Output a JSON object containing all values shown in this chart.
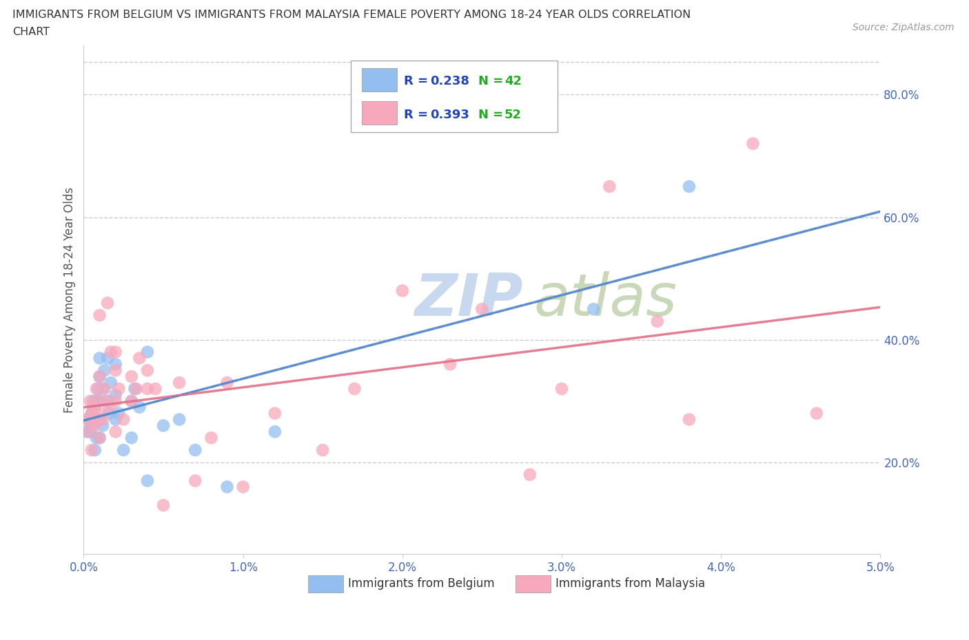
{
  "title_line1": "IMMIGRANTS FROM BELGIUM VS IMMIGRANTS FROM MALAYSIA FEMALE POVERTY AMONG 18-24 YEAR OLDS CORRELATION",
  "title_line2": "CHART",
  "source": "Source: ZipAtlas.com",
  "ylabel": "Female Poverty Among 18-24 Year Olds",
  "xlim": [
    0.0,
    0.05
  ],
  "ylim": [
    0.05,
    0.88
  ],
  "xticks": [
    0.0,
    0.01,
    0.02,
    0.03,
    0.04,
    0.05
  ],
  "xtick_labels": [
    "0.0%",
    "1.0%",
    "2.0%",
    "3.0%",
    "4.0%",
    "5.0%"
  ],
  "ytick_labels": [
    "20.0%",
    "40.0%",
    "60.0%",
    "80.0%"
  ],
  "ytick_values": [
    0.2,
    0.4,
    0.6,
    0.8
  ],
  "belgium_color": "#93BEEF",
  "malaysia_color": "#F7A8BC",
  "belgium_line_color": "#5588CC",
  "malaysia_line_color": "#E0708A",
  "belgium_line_style": "--",
  "malaysia_line_style": "-",
  "legend_R_color": "#2244BB",
  "legend_N_color": "#22AA22",
  "belgium_R": "0.238",
  "belgium_N": "42",
  "malaysia_R": "0.393",
  "malaysia_N": "52",
  "watermark_text": "ZIP",
  "watermark_text2": "atlas",
  "watermark_color1": "#C8D8EE",
  "watermark_color2": "#C8D8B8",
  "belgium_x": [
    0.0002,
    0.0003,
    0.0004,
    0.0005,
    0.0005,
    0.0006,
    0.0007,
    0.0007,
    0.0008,
    0.0008,
    0.0009,
    0.0009,
    0.001,
    0.001,
    0.001,
    0.001,
    0.001,
    0.0012,
    0.0012,
    0.0013,
    0.0015,
    0.0015,
    0.0016,
    0.0017,
    0.002,
    0.002,
    0.002,
    0.0022,
    0.0025,
    0.003,
    0.003,
    0.0032,
    0.0035,
    0.004,
    0.004,
    0.005,
    0.006,
    0.007,
    0.009,
    0.012,
    0.032,
    0.038
  ],
  "belgium_y": [
    0.25,
    0.27,
    0.25,
    0.26,
    0.28,
    0.3,
    0.22,
    0.29,
    0.24,
    0.3,
    0.27,
    0.32,
    0.24,
    0.27,
    0.3,
    0.34,
    0.37,
    0.26,
    0.32,
    0.35,
    0.3,
    0.37,
    0.28,
    0.33,
    0.27,
    0.31,
    0.36,
    0.28,
    0.22,
    0.3,
    0.24,
    0.32,
    0.29,
    0.17,
    0.38,
    0.26,
    0.27,
    0.22,
    0.16,
    0.25,
    0.45,
    0.65
  ],
  "malaysia_x": [
    0.0002,
    0.0003,
    0.0004,
    0.0005,
    0.0005,
    0.0006,
    0.0007,
    0.0008,
    0.0008,
    0.0009,
    0.001,
    0.001,
    0.001,
    0.001,
    0.0012,
    0.0013,
    0.0014,
    0.0015,
    0.0016,
    0.0017,
    0.002,
    0.002,
    0.002,
    0.002,
    0.0022,
    0.0025,
    0.003,
    0.003,
    0.0033,
    0.0035,
    0.004,
    0.004,
    0.0045,
    0.005,
    0.006,
    0.007,
    0.008,
    0.009,
    0.01,
    0.012,
    0.015,
    0.017,
    0.02,
    0.023,
    0.025,
    0.028,
    0.03,
    0.033,
    0.036,
    0.038,
    0.042,
    0.046
  ],
  "malaysia_y": [
    0.27,
    0.25,
    0.3,
    0.22,
    0.28,
    0.29,
    0.26,
    0.27,
    0.32,
    0.3,
    0.24,
    0.28,
    0.34,
    0.44,
    0.27,
    0.32,
    0.3,
    0.46,
    0.29,
    0.38,
    0.25,
    0.3,
    0.35,
    0.38,
    0.32,
    0.27,
    0.3,
    0.34,
    0.32,
    0.37,
    0.32,
    0.35,
    0.32,
    0.13,
    0.33,
    0.17,
    0.24,
    0.33,
    0.16,
    0.28,
    0.22,
    0.32,
    0.48,
    0.36,
    0.45,
    0.18,
    0.32,
    0.65,
    0.43,
    0.27,
    0.72,
    0.28
  ]
}
